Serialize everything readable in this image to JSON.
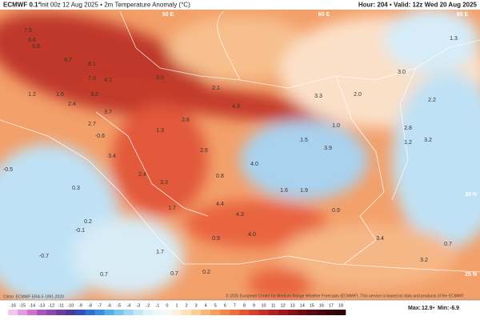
{
  "header": {
    "brand": "ECMWF 0.1°",
    "info": "Init 00z 12 Aug 2025 • 2m Temperature Anomaly (°C)",
    "valid": "Hour: 204 • Valid: 12z Wed 20 Aug 2025"
  },
  "map": {
    "coords": [
      "50 E",
      "60 E",
      "65 E",
      "30 N",
      "25 N"
    ],
    "labels": [
      "7.5",
      "6.6",
      "6.7",
      "8.1",
      "7.0",
      "5.8",
      "1.2",
      "2.4",
      "3.2",
      "4.1",
      "1.6",
      "3.7",
      "2.7",
      "3.4",
      "2.4",
      "3.3",
      "1.7",
      "3.0",
      "2.1",
      "4.3",
      "2.8",
      "2.6",
      "0.8",
      "1.3",
      "4.0",
      "1.6",
      "1.9",
      "1.5",
      "3.9",
      "1.0",
      "2.0",
      "3.3",
      "3.0",
      "2.8",
      "3.2",
      "1.2",
      "2.2",
      "1.3",
      "0.9",
      "0.7",
      "3.4",
      "3.2",
      "4.4",
      "4.3",
      "4.0",
      "0.9",
      "0.2",
      "-0.1",
      "-0.7",
      "0.7",
      "0.7",
      "1.7",
      "0.2",
      "-0.6",
      "0.3",
      "-0.5"
    ]
  },
  "footer": {
    "climo": "Climo: ECMWF ERA-5 1991-2020",
    "copyright": "© 2025 European Centre for Medium-Range Weather Forecasts (ECMWF). This service is based on data and products of the ECMWF."
  },
  "colorbar": {
    "ticks": [
      -16,
      -15,
      -14,
      -13,
      -12,
      -11,
      -10,
      -9,
      -8,
      -7,
      -6,
      -5,
      -4,
      -3,
      -2,
      -1,
      0,
      1,
      2,
      3,
      4,
      5,
      6,
      7,
      8,
      9,
      10,
      11,
      12,
      13,
      14,
      15,
      16,
      17,
      18
    ],
    "colors": [
      "#f2c6ef",
      "#e29ce0",
      "#cc73cc",
      "#a855b8",
      "#8a4aa8",
      "#6a3c9c",
      "#4a3a9a",
      "#3050b8",
      "#2f6fd0",
      "#3b8fe0",
      "#55aeea",
      "#79c6f0",
      "#a0d8f4",
      "#c4e6f7",
      "#dff1fa",
      "#eef8fc",
      "#f8f8f8",
      "#fdf0dc",
      "#fde1bb",
      "#fccd95",
      "#f9b676",
      "#f69e5c",
      "#f2864a",
      "#ec6d3d",
      "#e45533",
      "#d6402b",
      "#c63026",
      "#b22221",
      "#9c181c",
      "#861218",
      "#700c14",
      "#5c0a12",
      "#4a0810",
      "#3a060d",
      "#2c040a"
    ]
  },
  "stats": {
    "max_label": "Max:",
    "max": 12.9,
    "sep": "•",
    "min_label": "Min:",
    "min": -6.9
  }
}
